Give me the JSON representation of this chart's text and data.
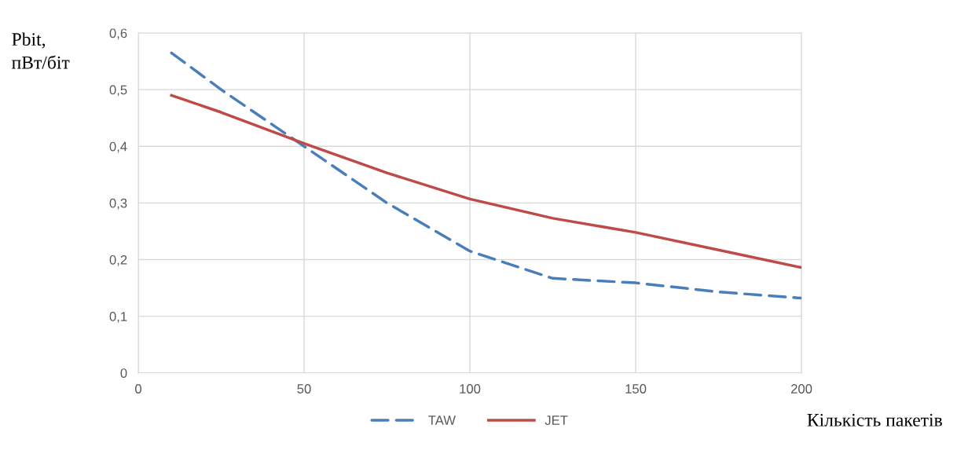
{
  "chart_data": {
    "type": "line",
    "xlabel": "Кількість пакетів",
    "ylabel": "Pbit,\nпВт/біт",
    "x": [
      10,
      25,
      50,
      75,
      100,
      125,
      150,
      175,
      200
    ],
    "series": [
      {
        "name": "TAW",
        "color": "#4a7ebb",
        "line_style": "dashed",
        "values": [
          0.565,
          0.5,
          0.4,
          0.3,
          0.215,
          0.167,
          0.159,
          0.143,
          0.132
        ]
      },
      {
        "name": "JET",
        "color": "#be4b48",
        "line_style": "solid",
        "values": [
          0.49,
          0.46,
          0.405,
          0.353,
          0.307,
          0.273,
          0.248,
          0.217,
          0.186
        ]
      }
    ],
    "xlim": [
      0,
      200
    ],
    "xticks": [
      0,
      50,
      100,
      150,
      200
    ],
    "ylim": [
      0,
      0.6
    ],
    "yticks": [
      0,
      {
        "value": 0.1,
        "label": "0,1"
      },
      {
        "value": 0.2,
        "label": "0,2"
      },
      {
        "value": 0.3,
        "label": "0,3"
      },
      {
        "value": 0.4,
        "label": "0,4"
      },
      {
        "value": 0.5,
        "label": "0,5"
      },
      {
        "value": 0.6,
        "label": "0,6"
      }
    ],
    "grid": true,
    "legend": "bottom",
    "marker": "none"
  }
}
